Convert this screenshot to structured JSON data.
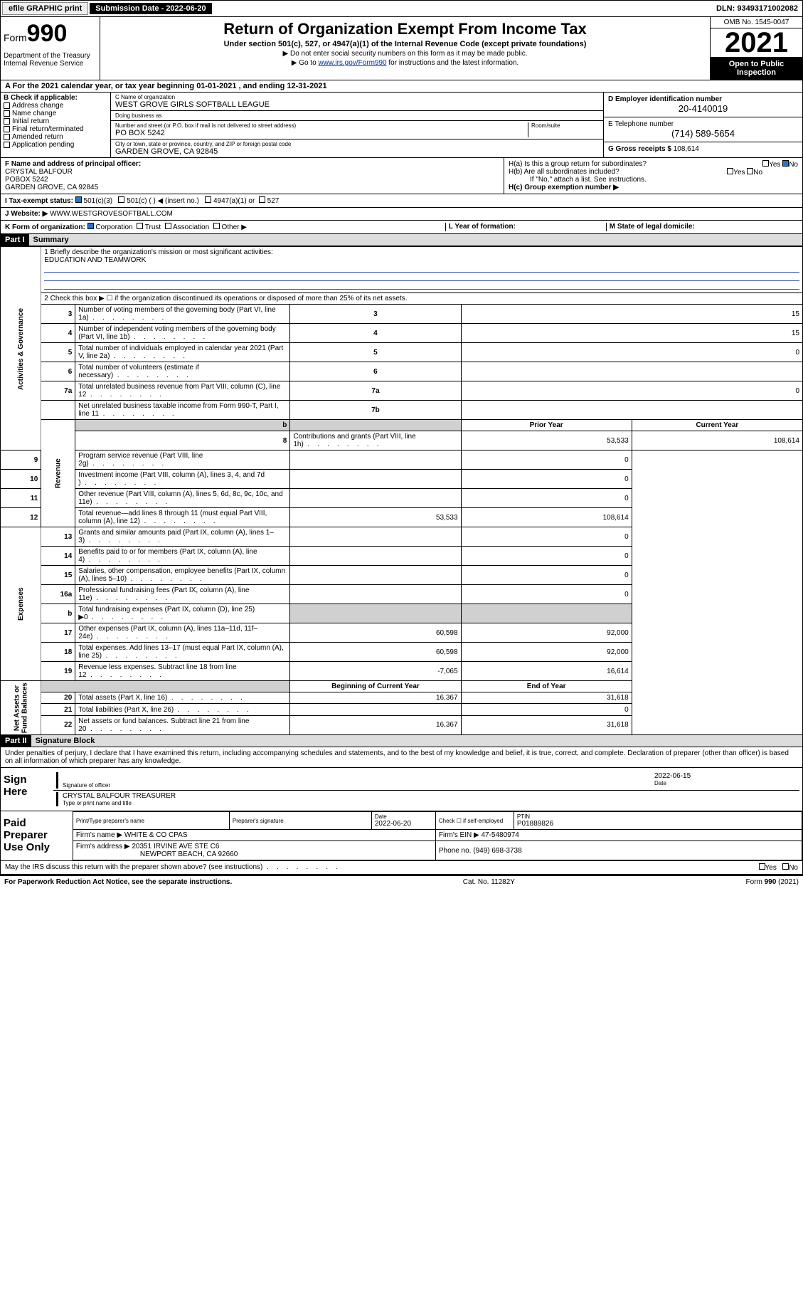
{
  "topbar": {
    "efile": "efile GRAPHIC print",
    "sub_label": "Submission Date - 2022-06-20",
    "dln": "DLN: 93493171002082"
  },
  "header": {
    "form_prefix": "Form",
    "form_number": "990",
    "title": "Return of Organization Exempt From Income Tax",
    "sub1": "Under section 501(c), 527, or 4947(a)(1) of the Internal Revenue Code (except private foundations)",
    "sub2": "▶ Do not enter social security numbers on this form as it may be made public.",
    "sub3_pre": "▶ Go to ",
    "sub3_link": "www.irs.gov/Form990",
    "sub3_post": " for instructions and the latest information.",
    "dept": "Department of the Treasury\nInternal Revenue Service",
    "omb": "OMB No. 1545-0047",
    "year": "2021",
    "open": "Open to Public Inspection"
  },
  "row_a": "A For the 2021 calendar year, or tax year beginning 01-01-2021    , and ending 12-31-2021",
  "block_b": {
    "label": "B Check if applicable:",
    "opts": [
      "Address change",
      "Name change",
      "Initial return",
      "Final return/terminated",
      "Amended return",
      "Application pending"
    ]
  },
  "block_c": {
    "name_lbl": "C Name of organization",
    "name": "WEST GROVE GIRLS SOFTBALL LEAGUE",
    "dba_lbl": "Doing business as",
    "dba": "",
    "addr_lbl": "Number and street (or P.O. box if mail is not delivered to street address)",
    "room_lbl": "Room/suite",
    "addr": "PO BOX 5242",
    "city_lbl": "City or town, state or province, country, and ZIP or foreign postal code",
    "city": "GARDEN GROVE, CA  92845"
  },
  "block_d": {
    "lbl": "D Employer identification number",
    "val": "20-4140019"
  },
  "block_e": {
    "lbl": "E Telephone number",
    "val": "(714) 589-5654"
  },
  "block_g": {
    "lbl": "G Gross receipts $",
    "val": "108,614"
  },
  "block_f": {
    "lbl": "F Name and address of principal officer:",
    "line1": "CRYSTAL BALFOUR",
    "line2": "POBOX 5242",
    "line3": "GARDEN GROVE, CA  92845"
  },
  "block_h": {
    "ha": "H(a)  Is this a group return for subordinates?",
    "ha_yes": "Yes",
    "ha_no": "No",
    "hb": "H(b)  Are all subordinates included?",
    "hb_yes": "Yes",
    "hb_no": "No",
    "hb_note": "If \"No,\" attach a list. See instructions.",
    "hc": "H(c)  Group exemption number ▶"
  },
  "row_i": {
    "lbl": "I     Tax-exempt status:",
    "o1": "501(c)(3)",
    "o2": "501(c) (  ) ◀ (insert no.)",
    "o3": "4947(a)(1) or",
    "o4": "527"
  },
  "row_j": {
    "lbl": "J    Website: ▶",
    "val": "WWW.WESTGROVESOFTBALL.COM"
  },
  "row_k": {
    "lbl": "K Form of organization:",
    "o1": "Corporation",
    "o2": "Trust",
    "o3": "Association",
    "o4": "Other ▶",
    "l_lbl": "L Year of formation:",
    "l_val": "",
    "m_lbl": "M State of legal domicile:",
    "m_val": ""
  },
  "part1": {
    "hdr": "Part I",
    "title": "Summary"
  },
  "summary": {
    "line1_lbl": "1   Briefly describe the organization's mission or most significant activities:",
    "line1_val": "EDUCATION AND TEAMWORK",
    "line2": "2   Check this box ▶ ☐  if the organization discontinued its operations or disposed of more than 25% of its net assets."
  },
  "table_rows": [
    {
      "n": "3",
      "text": "Number of voting members of the governing body (Part VI, line 1a)",
      "box": "3",
      "prior": "",
      "curr": "15",
      "two_col": false
    },
    {
      "n": "4",
      "text": "Number of independent voting members of the governing body (Part VI, line 1b)",
      "box": "4",
      "prior": "",
      "curr": "15",
      "two_col": false
    },
    {
      "n": "5",
      "text": "Total number of individuals employed in calendar year 2021 (Part V, line 2a)",
      "box": "5",
      "prior": "",
      "curr": "0",
      "two_col": false
    },
    {
      "n": "6",
      "text": "Total number of volunteers (estimate if necessary)",
      "box": "6",
      "prior": "",
      "curr": "",
      "two_col": false
    },
    {
      "n": "7a",
      "text": "Total unrelated business revenue from Part VIII, column (C), line 12",
      "box": "7a",
      "prior": "",
      "curr": "0",
      "two_col": false
    },
    {
      "n": "",
      "text": "Net unrelated business taxable income from Form 990-T, Part I, line 11",
      "box": "7b",
      "prior": "",
      "curr": "",
      "two_col": false
    }
  ],
  "col_hdrs": {
    "prior": "Prior Year",
    "curr": "Current Year"
  },
  "revenue_rows": [
    {
      "n": "8",
      "text": "Contributions and grants (Part VIII, line 1h)",
      "prior": "53,533",
      "curr": "108,614"
    },
    {
      "n": "9",
      "text": "Program service revenue (Part VIII, line 2g)",
      "prior": "",
      "curr": "0"
    },
    {
      "n": "10",
      "text": "Investment income (Part VIII, column (A), lines 3, 4, and 7d )",
      "prior": "",
      "curr": "0"
    },
    {
      "n": "11",
      "text": "Other revenue (Part VIII, column (A), lines 5, 6d, 8c, 9c, 10c, and 11e)",
      "prior": "",
      "curr": "0"
    },
    {
      "n": "12",
      "text": "Total revenue—add lines 8 through 11 (must equal Part VIII, column (A), line 12)",
      "prior": "53,533",
      "curr": "108,614"
    }
  ],
  "expense_rows": [
    {
      "n": "13",
      "text": "Grants and similar amounts paid (Part IX, column (A), lines 1–3)",
      "prior": "",
      "curr": "0"
    },
    {
      "n": "14",
      "text": "Benefits paid to or for members (Part IX, column (A), line 4)",
      "prior": "",
      "curr": "0"
    },
    {
      "n": "15",
      "text": "Salaries, other compensation, employee benefits (Part IX, column (A), lines 5–10)",
      "prior": "",
      "curr": "0"
    },
    {
      "n": "16a",
      "text": "Professional fundraising fees (Part IX, column (A), line 11e)",
      "prior": "",
      "curr": "0"
    },
    {
      "n": "b",
      "text": "Total fundraising expenses (Part IX, column (D), line 25) ▶0",
      "prior": "shade",
      "curr": "shade"
    },
    {
      "n": "17",
      "text": "Other expenses (Part IX, column (A), lines 11a–11d, 11f–24e)",
      "prior": "60,598",
      "curr": "92,000"
    },
    {
      "n": "18",
      "text": "Total expenses. Add lines 13–17 (must equal Part IX, column (A), line 25)",
      "prior": "60,598",
      "curr": "92,000"
    },
    {
      "n": "19",
      "text": "Revenue less expenses. Subtract line 18 from line 12",
      "prior": "-7,065",
      "curr": "16,614"
    }
  ],
  "net_hdrs": {
    "prior": "Beginning of Current Year",
    "curr": "End of Year"
  },
  "net_rows": [
    {
      "n": "20",
      "text": "Total assets (Part X, line 16)",
      "prior": "16,367",
      "curr": "31,618"
    },
    {
      "n": "21",
      "text": "Total liabilities (Part X, line 26)",
      "prior": "",
      "curr": "0"
    },
    {
      "n": "22",
      "text": "Net assets or fund balances. Subtract line 21 from line 20",
      "prior": "16,367",
      "curr": "31,618"
    }
  ],
  "side_labels": {
    "gov": "Activities & Governance",
    "rev": "Revenue",
    "exp": "Expenses",
    "net": "Net Assets or\nFund Balances"
  },
  "part2": {
    "hdr": "Part II",
    "title": "Signature Block"
  },
  "sig_text": "Under penalties of perjury, I declare that I have examined this return, including accompanying schedules and statements, and to the best of my knowledge and belief, it is true, correct, and complete. Declaration of preparer (other than officer) is based on all information of which preparer has any knowledge.",
  "sign_here": {
    "label": "Sign Here",
    "officer_sig": "Signature of officer",
    "date": "2022-06-15",
    "date_lbl": "Date",
    "name": "CRYSTAL BALFOUR  TREASURER",
    "name_lbl": "Type or print name and title"
  },
  "paid_prep": {
    "label": "Paid Preparer Use Only",
    "h1": "Print/Type preparer's name",
    "h2": "Preparer's signature",
    "h3": "Date",
    "h3v": "2022-06-20",
    "h4": "Check ☐ if self-employed",
    "h5": "PTIN",
    "h5v": "P01889826",
    "firm_lbl": "Firm's name    ▶",
    "firm": "WHITE & CO CPAS",
    "ein_lbl": "Firm's EIN ▶",
    "ein": "47-5480974",
    "addr_lbl": "Firm's address ▶",
    "addr1": "20351 IRVINE AVE STE C6",
    "addr2": "NEWPORT BEACH, CA  92660",
    "phone_lbl": "Phone no.",
    "phone": "(949) 698-3738"
  },
  "discuss": {
    "text": "May the IRS discuss this return with the preparer shown above? (see instructions)",
    "yes": "Yes",
    "no": "No"
  },
  "footer": {
    "left": "For Paperwork Reduction Act Notice, see the separate instructions.",
    "mid": "Cat. No. 11282Y",
    "right": "Form 990 (2021)"
  }
}
